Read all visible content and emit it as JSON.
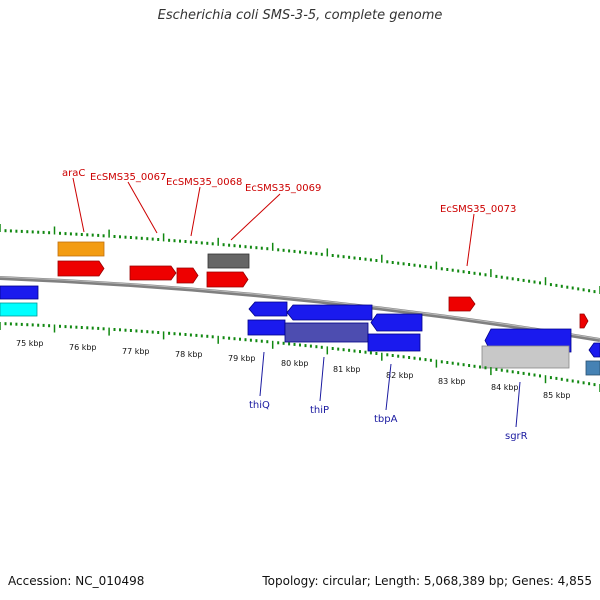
{
  "title": "Escherichia coli SMS-3-5, complete genome",
  "footer": {
    "accession": "Accession: NC_010498",
    "stats": "Topology: circular; Length: 5,068,389 bp; Genes: 4,855"
  },
  "colors": {
    "forward_gene": "#ff0000",
    "reverse_gene": "#0000ff",
    "forward_label": "#cc0000",
    "reverse_label": "#1a1aa0",
    "tick": "#118811",
    "backbone": "#808080",
    "rna_orange": "#f39c12",
    "pseudo_gray": "#666666",
    "cyan": "#00ffff",
    "light_gray": "#c8c8c8",
    "steel_blue": "#4682b4"
  },
  "scale_labels": [
    "75 kbp",
    "76 kbp",
    "77 kbp",
    "78 kbp",
    "79 kbp",
    "80 kbp",
    "81 kbp",
    "82 kbp",
    "83 kbp",
    "84 kbp",
    "85 kbp"
  ],
  "forward_gene_labels": [
    "araC",
    "EcSMS35_0067",
    "EcSMS35_0068",
    "EcSMS35_0069",
    "EcSMS35_0073"
  ],
  "reverse_gene_labels": [
    "thiQ",
    "thiP",
    "tbpA",
    "sgrR"
  ]
}
